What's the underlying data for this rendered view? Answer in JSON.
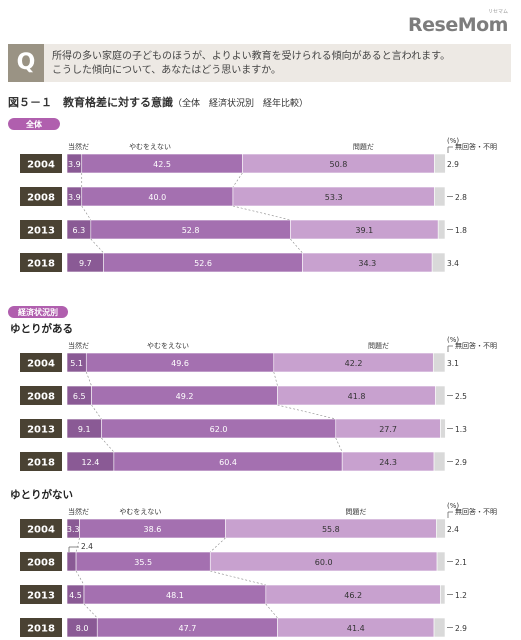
{
  "logo": {
    "text": "ReseMom",
    "sub": "リセマム"
  },
  "question": {
    "mark": "Q",
    "line1": "所得の多い家庭の子どものほうが、よりよい教育を受けられる傾向があると言われます。",
    "line2": "こうした傾向について、あなたはどう思いますか。"
  },
  "figure": {
    "title": "図５－１　教育格差に対する意識",
    "subtitle": "（全体　経済状況別　経年比較）"
  },
  "colors": {
    "seg1": "#8a5a95",
    "seg2": "#a470b0",
    "seg3": "#c8a1cf",
    "seg4": "#d9d9d9",
    "label_bg": "#4a4233",
    "label_text": "#ffffff",
    "pill": "#b05fae"
  },
  "chart_data": {
    "type": "bar",
    "stacked": true,
    "orientation": "horizontal",
    "unit": "(%)",
    "legend": [
      "当然だ",
      "やむをえない",
      "問題だ",
      "無回答・不明"
    ],
    "groups": [
      {
        "pill": "全体",
        "heading": "",
        "years": [
          "2004",
          "2008",
          "2013",
          "2018"
        ],
        "series": [
          {
            "name": "当然だ",
            "values": [
              3.9,
              3.9,
              6.3,
              9.7
            ]
          },
          {
            "name": "やむをえない",
            "values": [
              42.5,
              40.0,
              52.8,
              52.6
            ]
          },
          {
            "name": "問題だ",
            "values": [
              50.8,
              53.3,
              39.1,
              34.3
            ]
          },
          {
            "name": "無回答・不明",
            "values": [
              2.9,
              2.8,
              1.8,
              3.4
            ]
          }
        ]
      },
      {
        "pill": "経済状況別",
        "heading": "ゆとりがある",
        "years": [
          "2004",
          "2008",
          "2013",
          "2018"
        ],
        "series": [
          {
            "name": "当然だ",
            "values": [
              5.1,
              6.5,
              9.1,
              12.4
            ]
          },
          {
            "name": "やむをえない",
            "values": [
              49.6,
              49.2,
              62.0,
              60.4
            ]
          },
          {
            "name": "問題だ",
            "values": [
              42.2,
              41.8,
              27.7,
              24.3
            ]
          },
          {
            "name": "無回答・不明",
            "values": [
              3.1,
              2.5,
              1.3,
              2.9
            ]
          }
        ]
      },
      {
        "pill": "",
        "heading": "ゆとりがない",
        "years": [
          "2004",
          "2008",
          "2013",
          "2018"
        ],
        "series": [
          {
            "name": "当然だ",
            "values": [
              3.3,
              2.4,
              4.5,
              8.0
            ]
          },
          {
            "name": "やむをえない",
            "values": [
              38.6,
              35.5,
              48.1,
              47.7
            ]
          },
          {
            "name": "問題だ",
            "values": [
              55.8,
              60.0,
              46.2,
              41.4
            ]
          },
          {
            "name": "無回答・不明",
            "values": [
              2.4,
              2.1,
              1.2,
              2.9
            ]
          }
        ]
      }
    ]
  }
}
